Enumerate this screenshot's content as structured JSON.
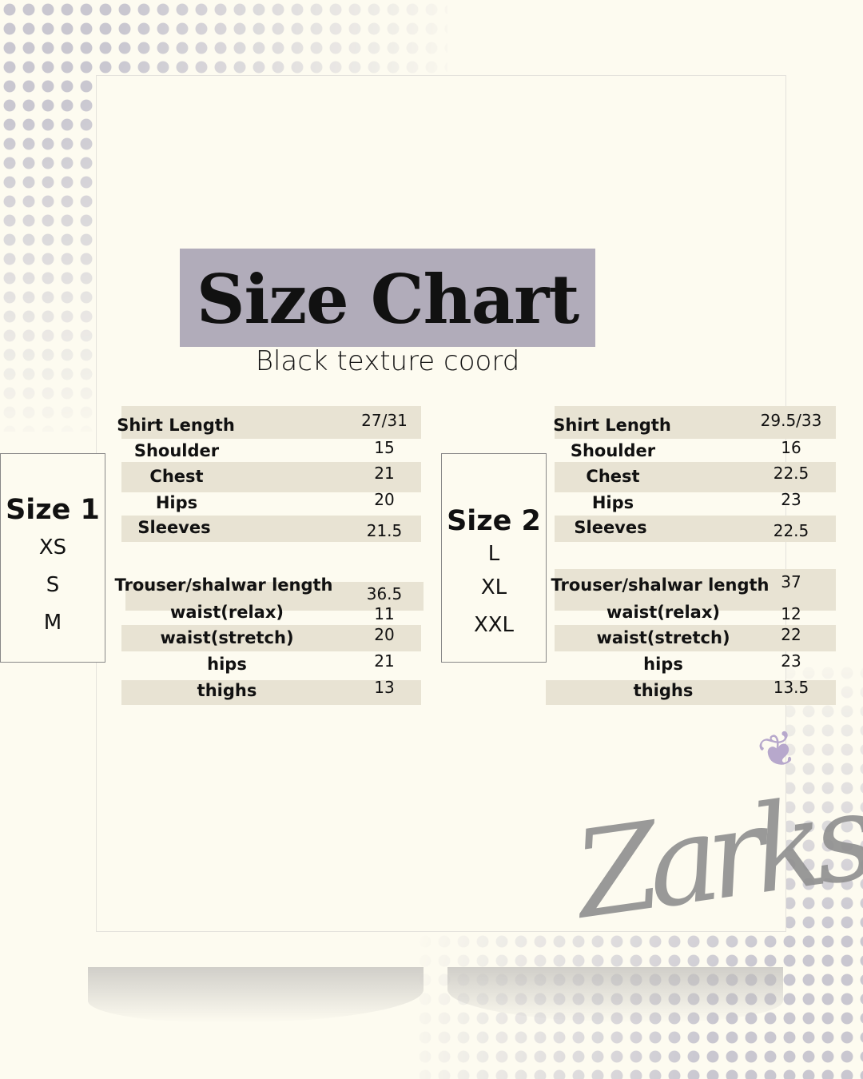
{
  "title": "Size Chart",
  "subtitle": "Black texture coord",
  "colors": {
    "title_band": "#b1acba",
    "row_band": "#e8e3d3",
    "background": "#fdfbf0"
  },
  "brand": {
    "logo_text": "Zarks",
    "icon": "butterfly-icon"
  },
  "size1": {
    "heading": "Size 1",
    "sizes": [
      "XS",
      "S",
      "M"
    ],
    "shirt": [
      {
        "label": "Shirt Length",
        "value": "27/31"
      },
      {
        "label": "Shoulder",
        "value": "15"
      },
      {
        "label": "Chest",
        "value": "21"
      },
      {
        "label": "Hips",
        "value": "20"
      },
      {
        "label": "Sleeves",
        "value": "21.5"
      }
    ],
    "trouser": [
      {
        "label": "Trouser/shalwar length",
        "value": "36.5"
      },
      {
        "label": "waist(relax)",
        "value": "11"
      },
      {
        "label": "waist(stretch)",
        "value": "20"
      },
      {
        "label": "hips",
        "value": "21"
      },
      {
        "label": "thighs",
        "value": "13"
      }
    ]
  },
  "size2": {
    "heading": "Size 2",
    "sizes": [
      "L",
      "XL",
      "XXL"
    ],
    "shirt": [
      {
        "label": "Shirt Length",
        "value": "29.5/33"
      },
      {
        "label": "Shoulder",
        "value": "16"
      },
      {
        "label": "Chest",
        "value": "22.5"
      },
      {
        "label": "Hips",
        "value": "23"
      },
      {
        "label": "Sleeves",
        "value": "22.5"
      }
    ],
    "trouser": [
      {
        "label": "Trouser/shalwar length",
        "value": "37"
      },
      {
        "label": "waist(relax)",
        "value": "12"
      },
      {
        "label": "waist(stretch)",
        "value": "22"
      },
      {
        "label": "hips",
        "value": "23"
      },
      {
        "label": "thighs",
        "value": "13.5"
      }
    ]
  }
}
